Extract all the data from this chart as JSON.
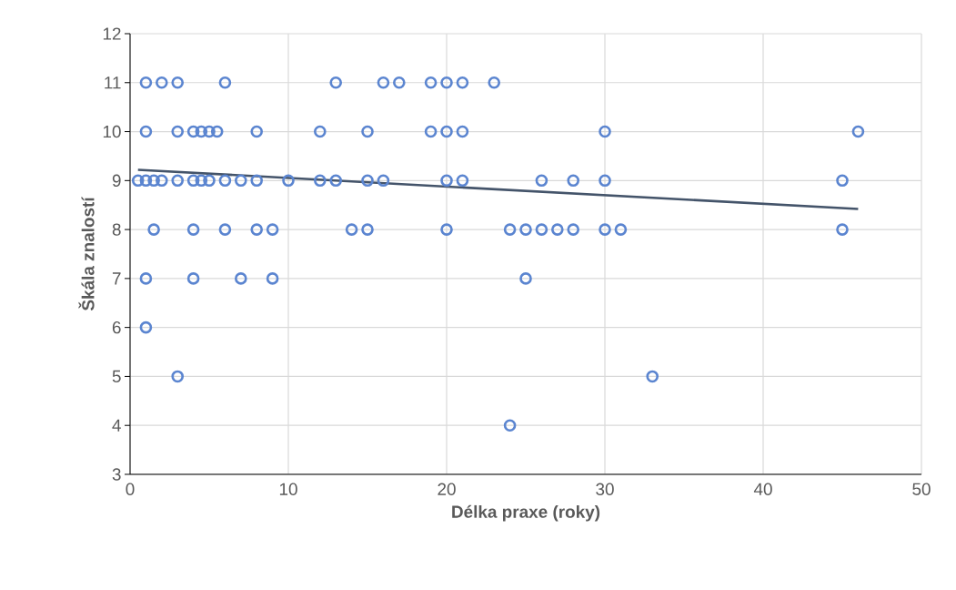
{
  "chart_data": {
    "type": "scatter",
    "xlabel": "Délka praxe (roky)",
    "ylabel": "Škála znalostí",
    "xlim": [
      0,
      50
    ],
    "xticks": [
      0,
      10,
      20,
      30,
      40,
      50
    ],
    "ylim": [
      3,
      12
    ],
    "yticks": [
      3,
      4,
      5,
      6,
      7,
      8,
      9,
      10,
      11,
      12
    ],
    "grid": true,
    "marker": "circle",
    "series": [
      {
        "color": "#5b85d0",
        "x": [
          1,
          2,
          3,
          6,
          13,
          16,
          17,
          19,
          20,
          21,
          23,
          1,
          3,
          4,
          4.5,
          5,
          5.5,
          8,
          12,
          15,
          19,
          20,
          21,
          30,
          46,
          0.5,
          1,
          1.5,
          2,
          3,
          4,
          4.5,
          5,
          6,
          7,
          8,
          10,
          12,
          13,
          15,
          16,
          20,
          21,
          26,
          28,
          30,
          45,
          1.5,
          4,
          6,
          8,
          9,
          14,
          15,
          20,
          24,
          25,
          26,
          27,
          28,
          30,
          31,
          45,
          1,
          4,
          7,
          9,
          25,
          1,
          3,
          33,
          24
        ],
        "values": [
          11,
          11,
          11,
          11,
          11,
          11,
          11,
          11,
          11,
          11,
          11,
          10,
          10,
          10,
          10,
          10,
          10,
          10,
          10,
          10,
          10,
          10,
          10,
          10,
          10,
          9,
          9,
          9,
          9,
          9,
          9,
          9,
          9,
          9,
          9,
          9,
          9,
          9,
          9,
          9,
          9,
          9,
          9,
          9,
          9,
          9,
          9,
          8,
          8,
          8,
          8,
          8,
          8,
          8,
          8,
          8,
          8,
          8,
          8,
          8,
          8,
          8,
          8,
          7,
          7,
          7,
          7,
          7,
          6,
          5,
          5,
          4
        ]
      },
      {
        "type": "line",
        "marker": "none",
        "color": "#44546a",
        "x": [
          0.5,
          46
        ],
        "values": [
          9.22,
          8.42
        ]
      }
    ]
  }
}
